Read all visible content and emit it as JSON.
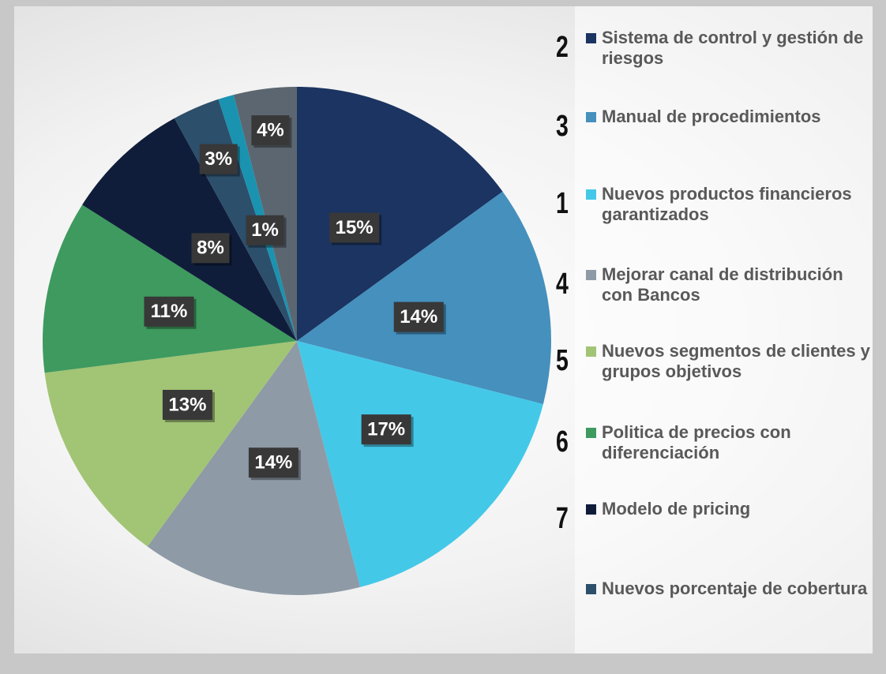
{
  "chart_data": {
    "type": "pie",
    "categories": [
      "Sistema de control y gestión de riesgos",
      "Manual de procedimientos",
      "Nuevos productos financieros garantizados",
      "Mejorar canal de distribución con Bancos",
      "Nuevos segmentos de clientes y grupos objetivos",
      "Politica de precios con diferenciación",
      "Modelo de pricing",
      "Nuevos porcentaje de cobertura",
      null,
      null
    ],
    "values": [
      15,
      14,
      17,
      14,
      13,
      11,
      8,
      3,
      1,
      4
    ],
    "value_labels": [
      "15%",
      "14%",
      "17%",
      "14%",
      "13%",
      "11%",
      "8%",
      "3%",
      "1%",
      "4%"
    ],
    "colors": [
      "#1b3461",
      "#4590bd",
      "#44c8e8",
      "#8e9aa6",
      "#a2c475",
      "#3e9a5e",
      "#0f1d3a",
      "#2c4f6b",
      "#1a93b0",
      "#5b6670"
    ],
    "ranks": [
      2,
      3,
      1,
      4,
      5,
      6,
      7,
      null,
      null,
      null
    ]
  }
}
